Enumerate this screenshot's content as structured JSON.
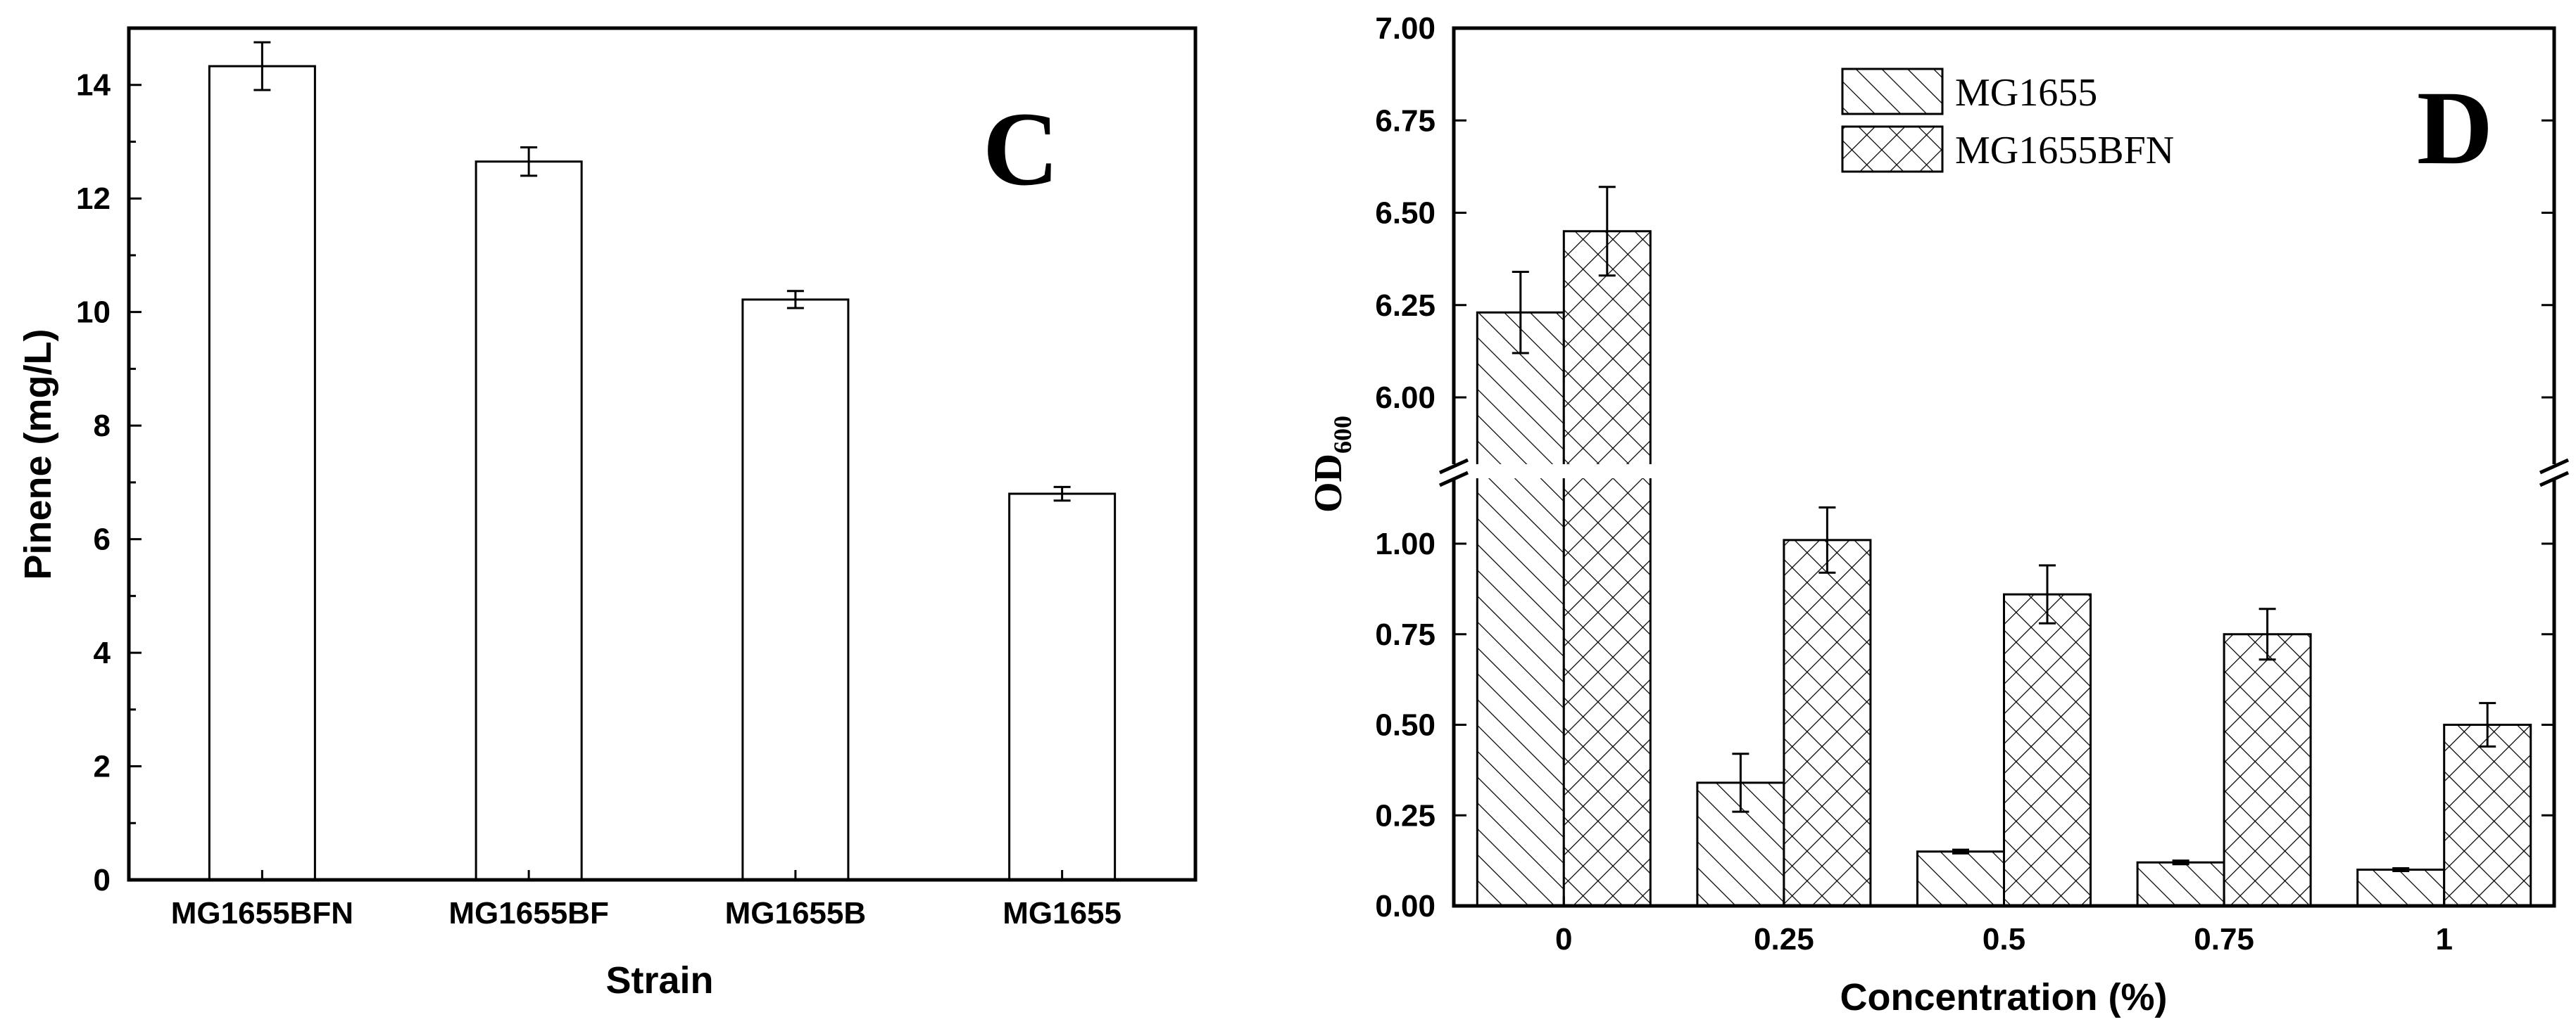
{
  "chart_data": [
    {
      "type": "bar",
      "panel_label": "C",
      "title": "",
      "xlabel": "Strain",
      "ylabel": "Pinene (mg/L)",
      "categories": [
        "MG1655BFN",
        "MG1655BF",
        "MG1655B",
        "MG1655"
      ],
      "values": [
        14.33,
        12.65,
        10.22,
        6.8
      ],
      "errors": [
        0.42,
        0.25,
        0.15,
        0.12
      ],
      "ylim": [
        0,
        15
      ],
      "yticks": [
        0,
        2,
        4,
        6,
        8,
        10,
        12,
        14
      ],
      "ytick_labels": [
        "0",
        "2",
        "4",
        "6",
        "8",
        "10",
        "12",
        "14"
      ],
      "grid": false,
      "fill": "#ffffff",
      "edge_color": "#000000"
    },
    {
      "type": "bar",
      "panel_label": "D",
      "title": "",
      "xlabel": "Concentration (%)",
      "ylabel": "OD600",
      "ylabel_main": "OD",
      "ylabel_sub": "600",
      "categories": [
        "0",
        "0.25",
        "0.5",
        "0.75",
        "1"
      ],
      "series": [
        {
          "name": "MG1655",
          "pattern": "diagonal-hatch",
          "values": [
            6.23,
            0.34,
            0.15,
            0.12,
            0.1
          ],
          "errors": [
            0.11,
            0.08,
            0.005,
            0.005,
            0.004
          ]
        },
        {
          "name": "MG1655BFN",
          "pattern": "cross-hatch",
          "values": [
            6.45,
            1.01,
            0.86,
            0.75,
            0.5
          ],
          "errors": [
            0.12,
            0.09,
            0.08,
            0.07,
            0.06
          ]
        }
      ],
      "y_axis_break": {
        "lower_range": [
          0,
          1.2
        ],
        "upper_range": [
          5.8,
          7.0
        ]
      },
      "yticks_lower": [
        0,
        0.25,
        0.5,
        0.75,
        1.0
      ],
      "ytick_labels_lower": [
        "0.00",
        "0.25",
        "0.50",
        "0.75",
        "1.00"
      ],
      "yticks_upper": [
        6.0,
        6.25,
        6.5,
        6.75,
        7.0
      ],
      "ytick_labels_upper": [
        "6.00",
        "6.25",
        "6.50",
        "6.75",
        "7.00"
      ],
      "legend_position": "top-center",
      "grid": false
    }
  ]
}
